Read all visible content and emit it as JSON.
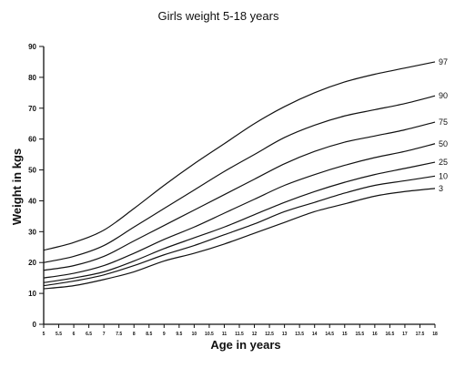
{
  "chart_data": {
    "type": "line",
    "title": "Girls weight 5-18 years",
    "xlabel": "Age in years",
    "ylabel": "Weight in kgs",
    "xlim": [
      5,
      18
    ],
    "ylim": [
      0,
      90
    ],
    "x_tick_labels": [
      "5",
      "5.5",
      "6",
      "6.5",
      "7",
      "7.5",
      "8",
      "8.5",
      "9",
      "9.5",
      "10",
      "10.5",
      "11",
      "11.5",
      "12",
      "12.5",
      "13",
      "13.5",
      "14",
      "14.5",
      "15",
      "15.5",
      "16",
      "16.5",
      "17",
      "17.5",
      "18"
    ],
    "y_tick_labels": [
      "0",
      "10",
      "20",
      "30",
      "40",
      "50",
      "60",
      "70",
      "80",
      "90"
    ],
    "grid": false,
    "x": [
      5,
      6,
      7,
      8,
      9,
      10,
      11,
      12,
      13,
      14,
      15,
      16,
      17,
      18
    ],
    "series": [
      {
        "name": "97",
        "values": [
          24,
          26.5,
          30.5,
          37.5,
          45,
          52,
          58.5,
          65,
          70.5,
          75,
          78.5,
          81,
          83,
          85
        ]
      },
      {
        "name": "90",
        "values": [
          20,
          22,
          25.5,
          31.5,
          37.5,
          43.5,
          49.5,
          55,
          60.5,
          64.5,
          67.5,
          69.5,
          71.5,
          74
        ]
      },
      {
        "name": "75",
        "values": [
          17.5,
          19,
          22,
          27,
          32,
          37,
          42,
          47,
          52,
          56,
          59,
          61,
          63,
          65.5
        ]
      },
      {
        "name": "50",
        "values": [
          15,
          16.5,
          19,
          23,
          27.5,
          31.5,
          36,
          40.5,
          45,
          48.5,
          51.5,
          54,
          56,
          58.5
        ]
      },
      {
        "name": "25",
        "values": [
          13.5,
          15,
          17,
          20.5,
          24.5,
          28,
          31.5,
          35.5,
          39.5,
          43,
          46,
          48.5,
          50.5,
          52.5
        ]
      },
      {
        "name": "10",
        "values": [
          12.5,
          14,
          16,
          19,
          22.5,
          25.5,
          29,
          32.5,
          36.5,
          39.5,
          42.5,
          45,
          46.5,
          48
        ]
      },
      {
        "name": "3",
        "values": [
          11.5,
          12.5,
          14.5,
          17,
          20.5,
          23,
          26,
          29.5,
          33,
          36.5,
          39,
          41.5,
          43,
          44
        ]
      }
    ]
  }
}
